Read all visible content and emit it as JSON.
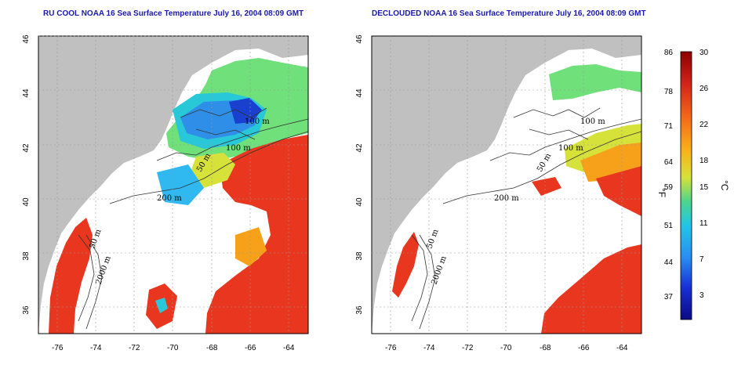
{
  "panels": [
    {
      "title": "RU COOL NOAA 16 Sea Surface Temperature July 16, 2004 08:09 GMT",
      "variant": "raw"
    },
    {
      "title": "DECLOUDED NOAA 16 Sea Surface Temperature July 16, 2004 08:09 GMT",
      "variant": "declouded"
    }
  ],
  "axes": {
    "x_ticks": [
      "-76",
      "-74",
      "-72",
      "-70",
      "-68",
      "-66",
      "-64"
    ],
    "y_ticks": [
      "46",
      "44",
      "42",
      "40",
      "38",
      "36"
    ],
    "x_range": [
      -77,
      -63
    ],
    "y_range": [
      35,
      46
    ]
  },
  "contour_labels": {
    "m100": "100 m",
    "m200": "200 m",
    "m50": "50 m",
    "m2000": "2000 m"
  },
  "colorbar": {
    "fahrenheit_ticks": [
      "86",
      "78",
      "71",
      "64",
      "59",
      "51",
      "44",
      "37"
    ],
    "celsius_ticks": [
      "30",
      "26",
      "22",
      "18",
      "15",
      "11",
      "7",
      "3"
    ],
    "fahrenheit_unit": "°F",
    "celsius_unit": "°C",
    "colors": [
      "#8b0000",
      "#d4231b",
      "#f56b1a",
      "#f7b317",
      "#d6e23a",
      "#4dd48e",
      "#20c6e6",
      "#2a8cf0",
      "#1830d8",
      "#0a0a82"
    ]
  },
  "colors": {
    "land": "#c0c0c0",
    "cloud": "#ffffff",
    "warm": "#e8361f",
    "cool_green": "#6fe07a",
    "cool_blue": "#2f8fe8"
  }
}
